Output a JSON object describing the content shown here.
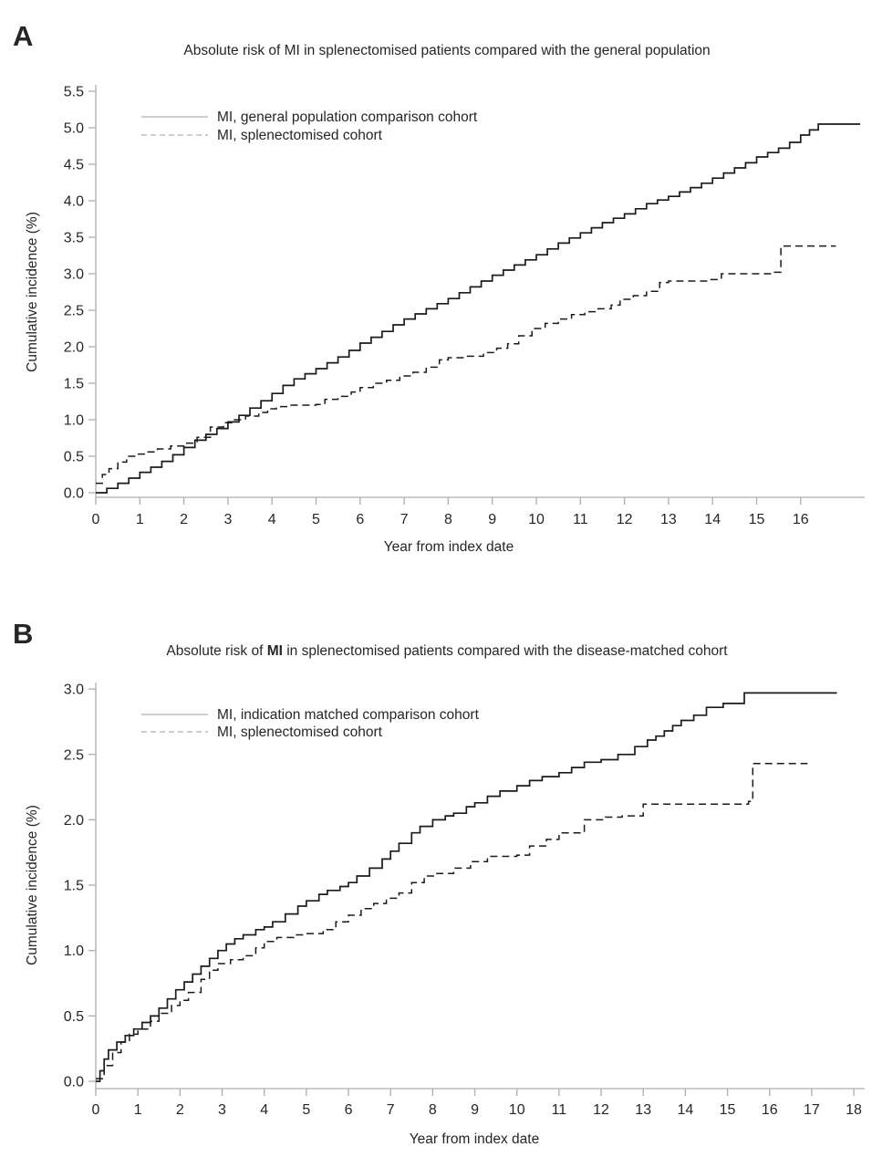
{
  "page": {
    "background_color": "#ffffff",
    "marker_color": "#17688f",
    "curve_color": "#1b1b1b",
    "axis_color": "#adadad",
    "legend_swatch_color": "#bdbdbd"
  },
  "chart_data": [
    {
      "panel_marker": "A",
      "type": "line",
      "step": true,
      "title": "Absolute risk of MI in splenectomised patients compared with the general population",
      "title_bold_substring": "",
      "xlabel": "Year from index date",
      "ylabel": "Cumulative incidence (%)",
      "xlim": [
        0,
        17.45
      ],
      "ylim": [
        0,
        5.5
      ],
      "xticks": [
        0,
        1,
        2,
        3,
        4,
        5,
        6,
        7,
        8,
        9,
        10,
        11,
        12,
        13,
        14,
        15,
        16
      ],
      "yticks": [
        0,
        0.5,
        1,
        1.5,
        2,
        2.5,
        3,
        3.5,
        4,
        4.5,
        5,
        5.5
      ],
      "grid": false,
      "legend_position": "top-left-inside",
      "series": [
        {
          "name": "MI, general population comparison cohort",
          "line_style": "solid",
          "color": "#1b1b1b",
          "points": [
            [
              0,
              0
            ],
            [
              0.25,
              0.06
            ],
            [
              0.5,
              0.13
            ],
            [
              0.75,
              0.2
            ],
            [
              1,
              0.28
            ],
            [
              1.25,
              0.35
            ],
            [
              1.5,
              0.43
            ],
            [
              1.75,
              0.52
            ],
            [
              2,
              0.62
            ],
            [
              2.25,
              0.72
            ],
            [
              2.5,
              0.8
            ],
            [
              2.75,
              0.88
            ],
            [
              3,
              0.97
            ],
            [
              3.25,
              1.06
            ],
            [
              3.5,
              1.16
            ],
            [
              3.75,
              1.26
            ],
            [
              4,
              1.36
            ],
            [
              4.25,
              1.47
            ],
            [
              4.5,
              1.56
            ],
            [
              4.75,
              1.63
            ],
            [
              5,
              1.7
            ],
            [
              5.25,
              1.78
            ],
            [
              5.5,
              1.86
            ],
            [
              5.75,
              1.95
            ],
            [
              6,
              2.05
            ],
            [
              6.25,
              2.13
            ],
            [
              6.5,
              2.21
            ],
            [
              6.75,
              2.3
            ],
            [
              7,
              2.38
            ],
            [
              7.25,
              2.45
            ],
            [
              7.5,
              2.52
            ],
            [
              7.75,
              2.59
            ],
            [
              8,
              2.66
            ],
            [
              8.25,
              2.74
            ],
            [
              8.5,
              2.82
            ],
            [
              8.75,
              2.9
            ],
            [
              9,
              2.98
            ],
            [
              9.25,
              3.05
            ],
            [
              9.5,
              3.12
            ],
            [
              9.75,
              3.19
            ],
            [
              10,
              3.26
            ],
            [
              10.25,
              3.34
            ],
            [
              10.5,
              3.42
            ],
            [
              10.75,
              3.49
            ],
            [
              11,
              3.56
            ],
            [
              11.25,
              3.63
            ],
            [
              11.5,
              3.7
            ],
            [
              11.75,
              3.76
            ],
            [
              12,
              3.82
            ],
            [
              12.25,
              3.89
            ],
            [
              12.5,
              3.96
            ],
            [
              12.75,
              4.01
            ],
            [
              13,
              4.06
            ],
            [
              13.25,
              4.12
            ],
            [
              13.5,
              4.18
            ],
            [
              13.75,
              4.24
            ],
            [
              14,
              4.31
            ],
            [
              14.25,
              4.38
            ],
            [
              14.5,
              4.45
            ],
            [
              14.75,
              4.52
            ],
            [
              15,
              4.6
            ],
            [
              15.25,
              4.66
            ],
            [
              15.5,
              4.72
            ],
            [
              15.75,
              4.8
            ],
            [
              16,
              4.9
            ],
            [
              16.2,
              4.97
            ],
            [
              16.4,
              5.05
            ],
            [
              17.35,
              5.05
            ]
          ]
        },
        {
          "name": "MI, splenectomised cohort",
          "line_style": "dashed",
          "color": "#1b1b1b",
          "points": [
            [
              0,
              0.13
            ],
            [
              0.15,
              0.25
            ],
            [
              0.3,
              0.33
            ],
            [
              0.5,
              0.42
            ],
            [
              0.7,
              0.5
            ],
            [
              0.9,
              0.53
            ],
            [
              1.1,
              0.56
            ],
            [
              1.4,
              0.6
            ],
            [
              1.7,
              0.64
            ],
            [
              2,
              0.68
            ],
            [
              2.3,
              0.76
            ],
            [
              2.6,
              0.9
            ],
            [
              2.9,
              0.96
            ],
            [
              3.1,
              1
            ],
            [
              3.4,
              1.05
            ],
            [
              3.7,
              1.1
            ],
            [
              3.9,
              1.15
            ],
            [
              4.1,
              1.18
            ],
            [
              4.4,
              1.2
            ],
            [
              5,
              1.21
            ],
            [
              5.2,
              1.28
            ],
            [
              5.5,
              1.32
            ],
            [
              5.8,
              1.38
            ],
            [
              6,
              1.44
            ],
            [
              6.3,
              1.5
            ],
            [
              6.6,
              1.54
            ],
            [
              6.9,
              1.6
            ],
            [
              7.2,
              1.65
            ],
            [
              7.5,
              1.72
            ],
            [
              7.8,
              1.82
            ],
            [
              8,
              1.85
            ],
            [
              8.4,
              1.87
            ],
            [
              8.8,
              1.92
            ],
            [
              9.1,
              1.98
            ],
            [
              9.35,
              2.04
            ],
            [
              9.6,
              2.15
            ],
            [
              9.9,
              2.25
            ],
            [
              10.2,
              2.32
            ],
            [
              10.5,
              2.38
            ],
            [
              10.8,
              2.44
            ],
            [
              11.1,
              2.48
            ],
            [
              11.4,
              2.52
            ],
            [
              11.7,
              2.57
            ],
            [
              11.9,
              2.65
            ],
            [
              12.2,
              2.7
            ],
            [
              12.5,
              2.76
            ],
            [
              12.8,
              2.88
            ],
            [
              13,
              2.9
            ],
            [
              13.9,
              2.92
            ],
            [
              14.2,
              3
            ],
            [
              15.4,
              3.02
            ],
            [
              15.55,
              3.38
            ],
            [
              16.8,
              3.38
            ]
          ]
        }
      ]
    },
    {
      "panel_marker": "B",
      "type": "line",
      "step": true,
      "title": "Absolute risk of MI in splenectomised patients compared with the disease-matched cohort",
      "title_bold_substring": "MI",
      "xlabel": "Year from index date",
      "ylabel": "Cumulative incidence (%)",
      "xlim": [
        0,
        18.25
      ],
      "ylim": [
        0,
        3.0
      ],
      "xticks": [
        0,
        1,
        2,
        3,
        4,
        5,
        6,
        7,
        8,
        9,
        10,
        11,
        12,
        13,
        14,
        15,
        16,
        17,
        18
      ],
      "yticks": [
        0,
        0.5,
        1,
        1.5,
        2,
        2.5,
        3
      ],
      "grid": false,
      "legend_position": "top-left-inside",
      "series": [
        {
          "name": "MI, indication matched comparison cohort",
          "line_style": "solid",
          "color": "#1b1b1b",
          "points": [
            [
              0,
              0
            ],
            [
              0.1,
              0.08
            ],
            [
              0.2,
              0.17
            ],
            [
              0.3,
              0.24
            ],
            [
              0.5,
              0.3
            ],
            [
              0.7,
              0.35
            ],
            [
              0.9,
              0.4
            ],
            [
              1.1,
              0.45
            ],
            [
              1.3,
              0.5
            ],
            [
              1.5,
              0.56
            ],
            [
              1.7,
              0.63
            ],
            [
              1.9,
              0.7
            ],
            [
              2.1,
              0.76
            ],
            [
              2.3,
              0.82
            ],
            [
              2.5,
              0.88
            ],
            [
              2.7,
              0.94
            ],
            [
              2.9,
              1
            ],
            [
              3.1,
              1.05
            ],
            [
              3.3,
              1.09
            ],
            [
              3.5,
              1.12
            ],
            [
              3.8,
              1.16
            ],
            [
              4,
              1.18
            ],
            [
              4.2,
              1.22
            ],
            [
              4.5,
              1.28
            ],
            [
              4.8,
              1.34
            ],
            [
              5,
              1.38
            ],
            [
              5.3,
              1.43
            ],
            [
              5.5,
              1.46
            ],
            [
              5.8,
              1.49
            ],
            [
              6,
              1.52
            ],
            [
              6.2,
              1.57
            ],
            [
              6.5,
              1.63
            ],
            [
              6.8,
              1.7
            ],
            [
              7,
              1.76
            ],
            [
              7.2,
              1.82
            ],
            [
              7.5,
              1.9
            ],
            [
              7.7,
              1.95
            ],
            [
              8,
              2
            ],
            [
              8.3,
              2.03
            ],
            [
              8.5,
              2.05
            ],
            [
              8.8,
              2.1
            ],
            [
              9,
              2.13
            ],
            [
              9.3,
              2.18
            ],
            [
              9.6,
              2.22
            ],
            [
              10,
              2.26
            ],
            [
              10.3,
              2.3
            ],
            [
              10.6,
              2.33
            ],
            [
              11,
              2.36
            ],
            [
              11.3,
              2.4
            ],
            [
              11.6,
              2.44
            ],
            [
              12,
              2.46
            ],
            [
              12.4,
              2.5
            ],
            [
              12.8,
              2.56
            ],
            [
              13.1,
              2.61
            ],
            [
              13.3,
              2.64
            ],
            [
              13.5,
              2.68
            ],
            [
              13.7,
              2.72
            ],
            [
              13.9,
              2.76
            ],
            [
              14.2,
              2.8
            ],
            [
              14.5,
              2.86
            ],
            [
              14.9,
              2.89
            ],
            [
              15.4,
              2.97
            ],
            [
              17.6,
              2.97
            ]
          ]
        },
        {
          "name": "MI, splenectomised cohort",
          "line_style": "dashed",
          "color": "#1b1b1b",
          "points": [
            [
              0,
              0.02
            ],
            [
              0.2,
              0.12
            ],
            [
              0.4,
              0.22
            ],
            [
              0.6,
              0.3
            ],
            [
              0.8,
              0.36
            ],
            [
              1,
              0.4
            ],
            [
              1.3,
              0.46
            ],
            [
              1.5,
              0.52
            ],
            [
              1.8,
              0.58
            ],
            [
              2,
              0.62
            ],
            [
              2.2,
              0.68
            ],
            [
              2.5,
              0.78
            ],
            [
              2.7,
              0.85
            ],
            [
              2.9,
              0.9
            ],
            [
              3.2,
              0.93
            ],
            [
              3.5,
              0.96
            ],
            [
              3.8,
              1.02
            ],
            [
              4,
              1.07
            ],
            [
              4.3,
              1.1
            ],
            [
              4.7,
              1.12
            ],
            [
              5,
              1.13
            ],
            [
              5.4,
              1.16
            ],
            [
              5.7,
              1.22
            ],
            [
              6,
              1.27
            ],
            [
              6.3,
              1.32
            ],
            [
              6.6,
              1.36
            ],
            [
              6.9,
              1.4
            ],
            [
              7.2,
              1.44
            ],
            [
              7.5,
              1.52
            ],
            [
              7.8,
              1.57
            ],
            [
              8.1,
              1.59
            ],
            [
              8.5,
              1.63
            ],
            [
              8.9,
              1.68
            ],
            [
              9.3,
              1.72
            ],
            [
              10,
              1.73
            ],
            [
              10.3,
              1.8
            ],
            [
              10.7,
              1.85
            ],
            [
              11,
              1.9
            ],
            [
              11.6,
              2
            ],
            [
              12.1,
              2.02
            ],
            [
              12.5,
              2.03
            ],
            [
              13,
              2.12
            ],
            [
              15.5,
              2.14
            ],
            [
              15.6,
              2.43
            ],
            [
              16.9,
              2.43
            ]
          ]
        }
      ]
    }
  ]
}
